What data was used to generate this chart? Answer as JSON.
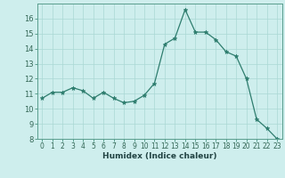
{
  "x": [
    0,
    1,
    2,
    3,
    4,
    5,
    6,
    7,
    8,
    9,
    10,
    11,
    12,
    13,
    14,
    15,
    16,
    17,
    18,
    19,
    20,
    21,
    22,
    23
  ],
  "y": [
    10.7,
    11.1,
    11.1,
    11.4,
    11.2,
    10.7,
    11.1,
    10.7,
    10.4,
    10.5,
    10.9,
    11.7,
    14.3,
    14.7,
    16.6,
    15.1,
    15.1,
    14.6,
    13.8,
    13.5,
    12.0,
    9.3,
    8.7,
    8.0
  ],
  "xlabel": "Humidex (Indice chaleur)",
  "ylim": [
    8,
    17
  ],
  "xlim": [
    -0.5,
    23.5
  ],
  "yticks": [
    8,
    9,
    10,
    11,
    12,
    13,
    14,
    15,
    16
  ],
  "xticks": [
    0,
    1,
    2,
    3,
    4,
    5,
    6,
    7,
    8,
    9,
    10,
    11,
    12,
    13,
    14,
    15,
    16,
    17,
    18,
    19,
    20,
    21,
    22,
    23
  ],
  "line_color": "#2e7d6e",
  "marker": "*",
  "bg_color": "#ceeeed",
  "grid_color": "#aad8d4",
  "spine_color": "#5a9e8e",
  "tick_label_color": "#336655",
  "xlabel_color": "#224444",
  "tick_fontsize": 5.5,
  "xlabel_fontsize": 6.5
}
